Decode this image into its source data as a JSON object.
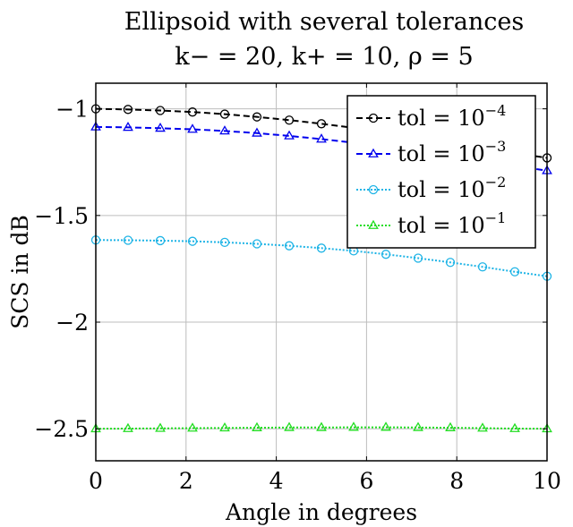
{
  "chart_data": {
    "type": "line",
    "title": "Ellipsoid with several tolerances",
    "subtitle": "k− = 20, k+ = 10, ρ = 5",
    "xlabel": "Angle in degrees",
    "ylabel": "SCS in dB",
    "xlim": [
      0,
      10
    ],
    "ylim": [
      -2.65,
      -0.88
    ],
    "xticks": [
      0,
      2,
      4,
      6,
      8,
      10
    ],
    "xtick_labels": [
      "0",
      "2",
      "4",
      "6",
      "8",
      "10"
    ],
    "yticks": [
      -1,
      -1.5,
      -2,
      -2.5
    ],
    "ytick_labels": [
      "−1",
      "−1.5",
      "−2",
      "−2.5"
    ],
    "grid": true,
    "legend_position": "top-right",
    "x": [
      0,
      0.714,
      1.429,
      2.143,
      2.857,
      3.571,
      4.286,
      5.0,
      5.714,
      6.429,
      7.143,
      7.857,
      8.571,
      9.286,
      10.0
    ],
    "series": [
      {
        "name": "tol = 10^-4",
        "legend_base": "tol = 10",
        "legend_exp": "−4",
        "color": "#000000",
        "marker": "circle",
        "dash": "7,4",
        "values": [
          -1.0,
          -1.003,
          -1.008,
          -1.015,
          -1.025,
          -1.038,
          -1.053,
          -1.07,
          -1.089,
          -1.11,
          -1.133,
          -1.157,
          -1.182,
          -1.208,
          -1.23
        ]
      },
      {
        "name": "tol = 10^-3",
        "legend_base": "tol = 10",
        "legend_exp": "−3",
        "color": "#0000ee",
        "marker": "triangle",
        "dash": "7,4",
        "values": [
          -1.085,
          -1.087,
          -1.091,
          -1.096,
          -1.104,
          -1.114,
          -1.127,
          -1.142,
          -1.159,
          -1.178,
          -1.199,
          -1.221,
          -1.244,
          -1.268,
          -1.29
        ]
      },
      {
        "name": "tol = 10^-2",
        "legend_base": "tol = 10",
        "legend_exp": "−2",
        "color": "#1fb4e6",
        "marker": "circle",
        "dash": "2,2",
        "values": [
          -1.615,
          -1.616,
          -1.618,
          -1.621,
          -1.626,
          -1.633,
          -1.642,
          -1.653,
          -1.666,
          -1.682,
          -1.7,
          -1.72,
          -1.741,
          -1.764,
          -1.785
        ]
      },
      {
        "name": "tol = 10^-1",
        "legend_base": "tol = 10",
        "legend_exp": "−1",
        "color": "#22dd22",
        "marker": "triangle",
        "dash": "2,2",
        "values": [
          -2.5,
          -2.499,
          -2.498,
          -2.497,
          -2.496,
          -2.495,
          -2.494,
          -2.494,
          -2.493,
          -2.493,
          -2.494,
          -2.495,
          -2.497,
          -2.499,
          -2.5
        ]
      }
    ]
  }
}
